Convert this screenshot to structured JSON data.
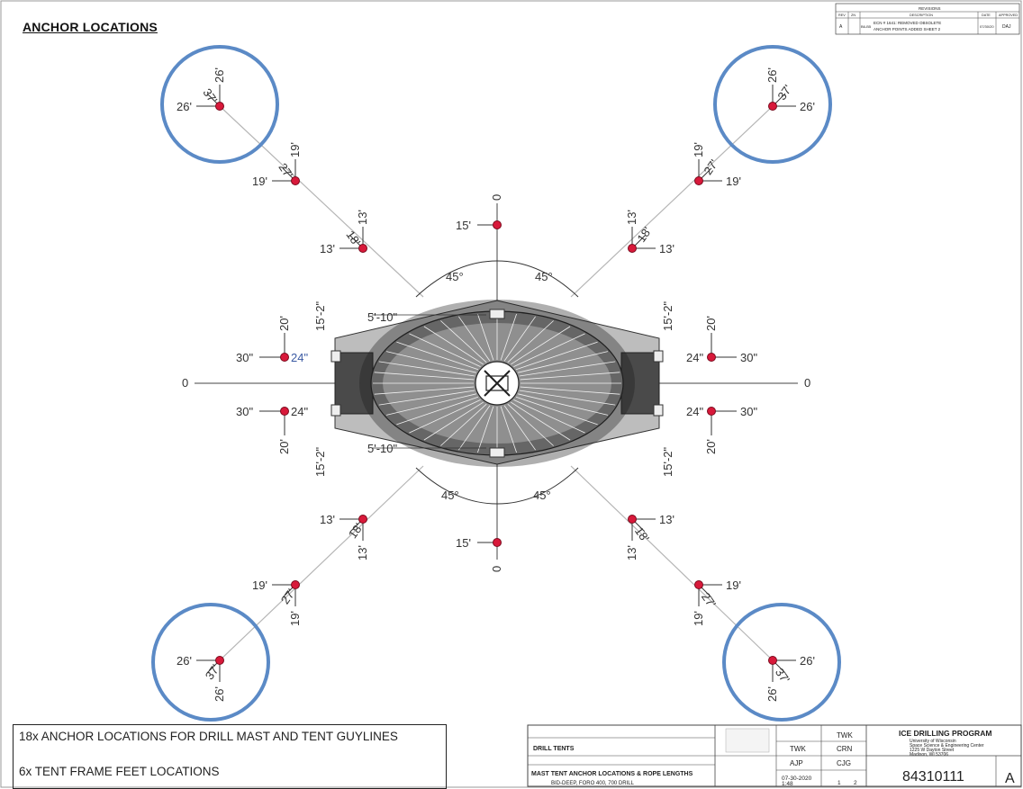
{
  "title": "ANCHOR LOCATIONS",
  "colors": {
    "anchor": "#d8193a",
    "highlight_ring": "#5b8ac6",
    "tent_light": "#bdbdbd",
    "tent_dark": "#2a2a2a"
  },
  "notes": [
    "18x ANCHOR LOCATIONS FOR DRILL MAST AND TENT GUYLINES",
    "6x  TENT FRAME FEET LOCATIONS"
  ],
  "angles": [
    "45°",
    "45°",
    "45°",
    "45°"
  ],
  "axis_labels": [
    "0",
    "0",
    "0",
    "0"
  ],
  "tent_dims": {
    "top_width": "5'-10\"",
    "bottom_width": "5'-10\"",
    "frame_height": [
      "15'-2\"",
      "15'-2\"",
      "15'-2\"",
      "15'-2\""
    ]
  },
  "diagonal_anchors": [
    {
      "pos": "top-left-outer",
      "a": "26'",
      "b": "26'",
      "d": "37'"
    },
    {
      "pos": "top-left-mid",
      "a": "19'",
      "b": "19'",
      "d": "27'"
    },
    {
      "pos": "top-left-inner",
      "a": "13'",
      "b": "13'",
      "d": "18'"
    },
    {
      "pos": "top-right-outer",
      "a": "26'",
      "b": "26'",
      "d": "37'"
    },
    {
      "pos": "top-right-mid",
      "a": "19'",
      "b": "19'",
      "d": "27'"
    },
    {
      "pos": "top-right-inner",
      "a": "13'",
      "b": "13'",
      "d": "18'"
    },
    {
      "pos": "bottom-left-inner",
      "a": "13'",
      "b": "13'",
      "d": "18'"
    },
    {
      "pos": "bottom-left-mid",
      "a": "19'",
      "b": "19'",
      "d": "27'"
    },
    {
      "pos": "bottom-left-outer",
      "a": "26'",
      "b": "26'",
      "d": "37'"
    },
    {
      "pos": "bottom-right-inner",
      "a": "13'",
      "b": "13'",
      "d": "18'"
    },
    {
      "pos": "bottom-right-mid",
      "a": "19'",
      "b": "19'",
      "d": "27'"
    },
    {
      "pos": "bottom-right-outer",
      "a": "26'",
      "b": "26'",
      "d": "37'"
    }
  ],
  "axis_anchors": {
    "top": "15'",
    "bottom": "15'"
  },
  "side_anchors": [
    {
      "pos": "left-upper",
      "out": "30\"",
      "up": "20'",
      "in": "24\""
    },
    {
      "pos": "left-lower",
      "out": "30\"",
      "up": "20'",
      "in": "24\""
    },
    {
      "pos": "right-upper",
      "out": "30\"",
      "up": "20'",
      "in": "24\""
    },
    {
      "pos": "right-lower",
      "out": "30\"",
      "up": "20'",
      "in": "24\""
    }
  ],
  "revision_block": {
    "heading": "REVISIONS",
    "headers": [
      "REV",
      "ZN",
      "DESCRIPTION",
      "DATE",
      "APPROVED"
    ],
    "row": {
      "rev": "A",
      "zone": "B6-B5",
      "desc1": "ECN # 1641: REMOVED OBSOLETE",
      "desc2": "ANCHOR POINTS ADDED SHEET 2",
      "date": "07/30/20",
      "approved": "DAJ"
    }
  },
  "title_block": {
    "part": "DRILL TENTS",
    "drawing_title": "MAST TENT ANCHOR LOCATIONS & ROPE LENGTHS",
    "used_on": "BID-DEEP, FORO 400, 700 DRILL",
    "drawn": "TWK",
    "designer": "AJP",
    "checked": "TWK",
    "quality": "CRN",
    "project": "CJG",
    "date": "07-30-2020",
    "scale": "1:48",
    "sheet": "1",
    "sheet_of": "2",
    "org": "ICE DRILLING PROGRAM",
    "org_lines": [
      "University of Wisconsin",
      "Space Science & Engineering Center",
      "1225 W Dayton Street",
      "Madison, WI 53706"
    ],
    "dwg_no": "84310111",
    "rev": "A"
  }
}
